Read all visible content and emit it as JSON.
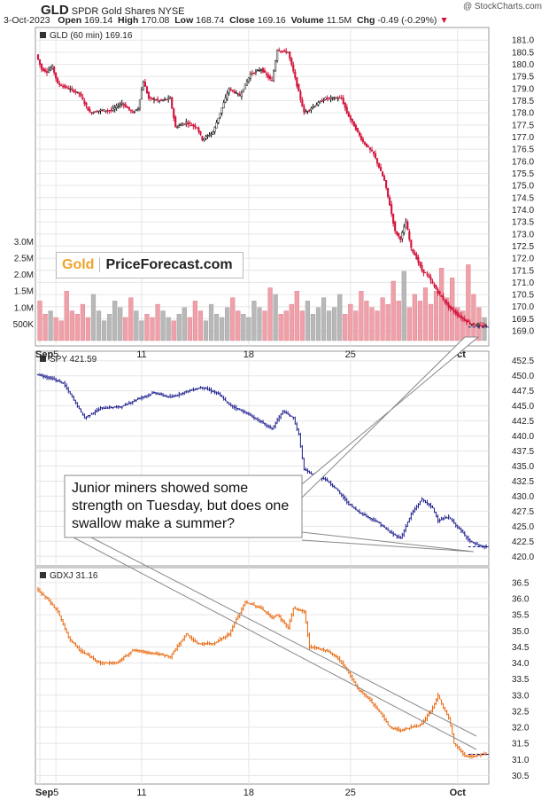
{
  "header": {
    "symbol": "GLD",
    "name": "SPDR Gold Shares",
    "exchange": "NYSE",
    "date": "3-Oct-2023",
    "open_label": "Open",
    "open": "169.14",
    "high_label": "High",
    "high": "170.08",
    "low_label": "Low",
    "low": "168.74",
    "close_label": "Close",
    "close": "169.16",
    "volume_label": "Volume",
    "volume": "11.5M",
    "chg_label": "Chg",
    "chg": "-0.49 (-0.29%)",
    "chg_marker": "▼",
    "watermark": "@ StockCharts.com"
  },
  "logo": {
    "part1": "Gold",
    "part2": "PriceForecast.com"
  },
  "callout": "Junior miners showed some strength on Tuesday, but does one swallow make a summer?",
  "colors": {
    "up": "#111111",
    "down": "#d2143c",
    "spy": "#1a1a8c",
    "gdxj": "#e8650a",
    "vol_up": "#b8b8b8",
    "vol_down": "#f0a0a8",
    "grid": "#e6e6e6",
    "frame": "#999999"
  },
  "x_ticks": [
    "Sep",
    "5",
    "11",
    "18",
    "25",
    "Oct"
  ],
  "chart_data": [
    {
      "type": "ohlc",
      "label": "GLD (60 min) 169.16",
      "ylim": [
        168.6,
        181.3
      ],
      "y_ticks": [
        169.0,
        169.5,
        170.0,
        170.5,
        171.0,
        171.5,
        172.0,
        172.5,
        173.0,
        173.5,
        174.0,
        174.5,
        175.0,
        175.5,
        176.0,
        176.5,
        177.0,
        177.5,
        178.0,
        178.5,
        179.0,
        179.5,
        180.0,
        180.5,
        181.0
      ],
      "last_value": 169.16,
      "volume_ticks": [
        "500K",
        "1.0M",
        "1.5M",
        "2.0M",
        "2.5M",
        "3.0M"
      ],
      "path": [
        [
          0,
          180.4
        ],
        [
          1,
          179.8
        ],
        [
          2,
          179.7
        ],
        [
          3,
          179.9
        ],
        [
          4,
          179.2
        ],
        [
          6,
          179.0
        ],
        [
          8,
          178.8
        ],
        [
          10,
          178.0
        ],
        [
          12,
          178.1
        ],
        [
          14,
          178.1
        ],
        [
          16,
          178.4
        ],
        [
          18,
          178.0
        ],
        [
          19,
          178.2
        ],
        [
          20,
          179.3
        ],
        [
          21,
          178.6
        ],
        [
          23,
          178.5
        ],
        [
          25,
          178.6
        ],
        [
          26,
          177.4
        ],
        [
          28,
          177.6
        ],
        [
          30,
          177.4
        ],
        [
          31,
          176.9
        ],
        [
          33,
          177.2
        ],
        [
          36,
          179.0
        ],
        [
          38,
          178.7
        ],
        [
          40,
          179.6
        ],
        [
          42,
          179.8
        ],
        [
          44,
          179.3
        ],
        [
          45,
          180.6
        ],
        [
          47,
          180.5
        ],
        [
          48,
          179.7
        ],
        [
          50,
          178.0
        ],
        [
          52,
          178.3
        ],
        [
          54,
          178.6
        ],
        [
          55,
          178.6
        ],
        [
          57,
          178.6
        ],
        [
          58,
          178.0
        ],
        [
          61,
          176.8
        ],
        [
          63,
          176.3
        ],
        [
          65,
          175.2
        ],
        [
          66,
          174.2
        ],
        [
          67,
          173.1
        ],
        [
          68,
          172.8
        ],
        [
          69,
          173.5
        ],
        [
          70,
          172.4
        ],
        [
          71,
          172.0
        ],
        [
          72,
          171.5
        ],
        [
          73,
          171.3
        ],
        [
          75,
          170.6
        ],
        [
          77,
          170.0
        ],
        [
          79,
          169.6
        ],
        [
          81,
          169.3
        ],
        [
          83,
          169.2
        ]
      ],
      "volume": [
        1.2,
        0.8,
        0.9,
        0.7,
        0.6,
        1.5,
        0.9,
        0.8,
        1.1,
        0.7,
        1.4,
        0.9,
        0.6,
        0.8,
        1.2,
        1.0,
        0.7,
        1.3,
        0.9,
        0.6,
        0.8,
        0.7,
        1.1,
        0.9,
        0.7,
        0.6,
        0.8,
        1.0,
        0.7,
        1.2,
        0.9,
        0.6,
        1.1,
        0.8,
        0.7,
        1.0,
        1.3,
        0.9,
        0.8,
        0.7,
        1.2,
        1.0,
        0.9,
        1.6,
        1.4,
        0.8,
        0.9,
        1.1,
        1.5,
        0.9,
        1.2,
        0.8,
        1.0,
        1.3,
        0.9,
        1.0,
        1.4,
        0.8,
        1.1,
        0.9,
        1.5,
        1.2,
        1.0,
        0.9,
        1.3,
        1.1,
        1.8,
        1.2,
        2.1,
        1.0,
        1.4,
        1.2,
        1.6,
        1.1,
        1.5,
        2.2,
        1.3,
        1.9,
        1.0,
        0.9,
        2.3,
        1.4,
        1.0,
        0.7
      ]
    },
    {
      "type": "ohlc",
      "label": "SPY 421.59",
      "ylim": [
        419.3,
        453.2
      ],
      "y_ticks": [
        420.0,
        422.5,
        425.0,
        427.5,
        430.0,
        432.5,
        435.0,
        437.5,
        440.0,
        442.5,
        445.0,
        447.5,
        450.0,
        452.5
      ],
      "last_value": 421.59,
      "path": [
        [
          0,
          450.3
        ],
        [
          3,
          449.5
        ],
        [
          5,
          448.8
        ],
        [
          7,
          446.0
        ],
        [
          9,
          443.0
        ],
        [
          12,
          444.6
        ],
        [
          16,
          444.9
        ],
        [
          19,
          446.2
        ],
        [
          22,
          447.2
        ],
        [
          25,
          446.4
        ],
        [
          28,
          447.4
        ],
        [
          31,
          448.1
        ],
        [
          34,
          447.0
        ],
        [
          36,
          445.2
        ],
        [
          39,
          443.9
        ],
        [
          42,
          442.3
        ],
        [
          44,
          441.2
        ],
        [
          46,
          444.1
        ],
        [
          48,
          443.0
        ],
        [
          49,
          440.2
        ],
        [
          50,
          434.4
        ],
        [
          52,
          433.4
        ],
        [
          54,
          432.8
        ],
        [
          56,
          431.2
        ],
        [
          58,
          429.0
        ],
        [
          60,
          427.5
        ],
        [
          62,
          426.5
        ],
        [
          64,
          425.5
        ],
        [
          66,
          424.0
        ],
        [
          68,
          423.0
        ],
        [
          70,
          427.0
        ],
        [
          72,
          429.5
        ],
        [
          74,
          428.0
        ],
        [
          75,
          426.0
        ],
        [
          77,
          426.5
        ],
        [
          79,
          424.5
        ],
        [
          81,
          422.5
        ],
        [
          83,
          421.6
        ]
      ]
    },
    {
      "type": "ohlc",
      "label": "GDXJ 31.16",
      "ylim": [
        30.4,
        36.8
      ],
      "y_ticks": [
        30.5,
        31.0,
        31.5,
        32.0,
        32.5,
        33.0,
        33.5,
        34.0,
        34.5,
        35.0,
        35.5,
        36.0,
        36.5
      ],
      "last_value": 31.16,
      "path": [
        [
          0,
          36.3
        ],
        [
          2,
          36.0
        ],
        [
          4,
          35.6
        ],
        [
          6,
          34.8
        ],
        [
          8,
          34.4
        ],
        [
          10,
          34.2
        ],
        [
          12,
          34.0
        ],
        [
          15,
          34.0
        ],
        [
          18,
          34.4
        ],
        [
          22,
          34.3
        ],
        [
          25,
          34.2
        ],
        [
          28,
          34.9
        ],
        [
          30,
          34.6
        ],
        [
          33,
          34.6
        ],
        [
          36,
          34.9
        ],
        [
          39,
          35.9
        ],
        [
          42,
          35.7
        ],
        [
          44,
          35.4
        ],
        [
          45,
          35.5
        ],
        [
          47,
          35.1
        ],
        [
          48,
          35.7
        ],
        [
          50,
          35.6
        ],
        [
          51,
          34.5
        ],
        [
          54,
          34.4
        ],
        [
          56,
          34.2
        ],
        [
          58,
          33.8
        ],
        [
          60,
          33.2
        ],
        [
          62,
          32.9
        ],
        [
          64,
          32.5
        ],
        [
          66,
          32.0
        ],
        [
          68,
          31.9
        ],
        [
          70,
          32.0
        ],
        [
          72,
          32.1
        ],
        [
          74,
          32.6
        ],
        [
          75,
          33.0
        ],
        [
          76,
          32.6
        ],
        [
          77,
          32.3
        ],
        [
          78,
          31.5
        ],
        [
          80,
          31.1
        ],
        [
          82,
          31.1
        ],
        [
          83,
          31.16
        ]
      ]
    }
  ]
}
